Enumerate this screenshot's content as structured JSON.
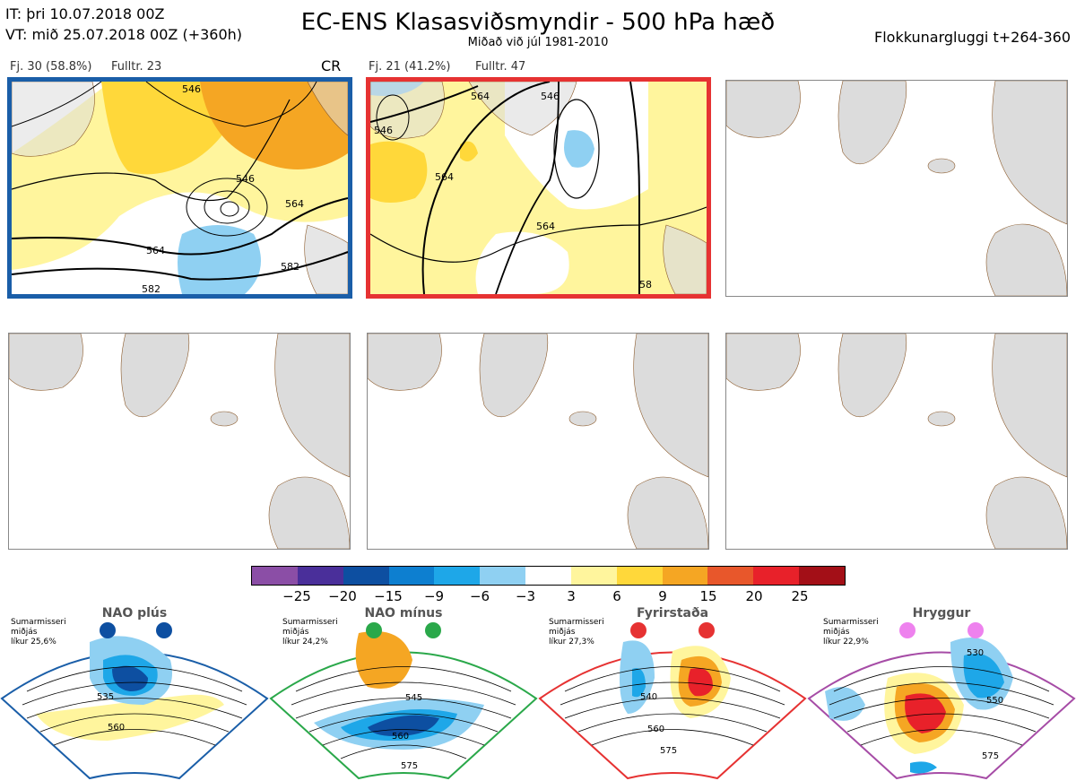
{
  "header": {
    "it_line": "IT: þri 10.07.2018 00Z",
    "vt_line": "VT: mið 25.07.2018 00Z  (+360h)",
    "title": "EC-ENS Klasasviðsmyndir - 500 hPa hæð",
    "subtitle": "Miðað við júl 1981-2010",
    "window": "Flokkunargluggi t+264-360"
  },
  "clusters": [
    {
      "members_label": "Fj. 30 (58.8%)",
      "representative": "Fulltr. 23",
      "regime_tag": "CR",
      "frame_color": "#1a5ea8",
      "contour_labels": [
        "546",
        "546",
        "564",
        "564",
        "582",
        "582"
      ]
    },
    {
      "members_label": "Fj. 21 (41.2%)",
      "representative": "Fulltr. 47",
      "regime_tag": "",
      "frame_color": "#e63232",
      "contour_labels": [
        "564",
        "546",
        "546",
        "564",
        "564",
        "58"
      ]
    }
  ],
  "colorbar": {
    "colors": [
      "#8b4ea6",
      "#4a2f9a",
      "#0d4fa1",
      "#0d7fd0",
      "#1ea7e8",
      "#8fd0f2",
      "#ffffff",
      "#fff59d",
      "#ffd83a",
      "#f5a623",
      "#e8572b",
      "#e8212a",
      "#a30f17"
    ],
    "ticks": [
      "−25",
      "−20",
      "−15",
      "−9",
      "−6",
      "−3",
      "3",
      "6",
      "9",
      "15",
      "20",
      "25"
    ]
  },
  "regimes": [
    {
      "name": "NAO plús",
      "season": "Sumarmisseri",
      "subtitle": "miðjás",
      "probability": "líkur 25,6%",
      "color": "#1a5ea8",
      "contour_labels": [
        "535",
        "560"
      ]
    },
    {
      "name": "NAO mínus",
      "season": "Sumarmisseri",
      "subtitle": "miðjás",
      "probability": "líkur 24,2%",
      "color": "#2aa84a",
      "contour_labels": [
        "545",
        "560",
        "575"
      ]
    },
    {
      "name": "Fyrirstaða",
      "season": "Sumarmisseri",
      "subtitle": "miðjás",
      "probability": "líkur 27,3%",
      "color": "#e63232",
      "contour_labels": [
        "540",
        "560",
        "575"
      ]
    },
    {
      "name": "Hryggur",
      "season": "Sumarmisseri",
      "subtitle": "miðjás",
      "probability": "líkur 22,9%",
      "color": "#a64ca6",
      "contour_labels": [
        "530",
        "550",
        "575"
      ]
    }
  ]
}
